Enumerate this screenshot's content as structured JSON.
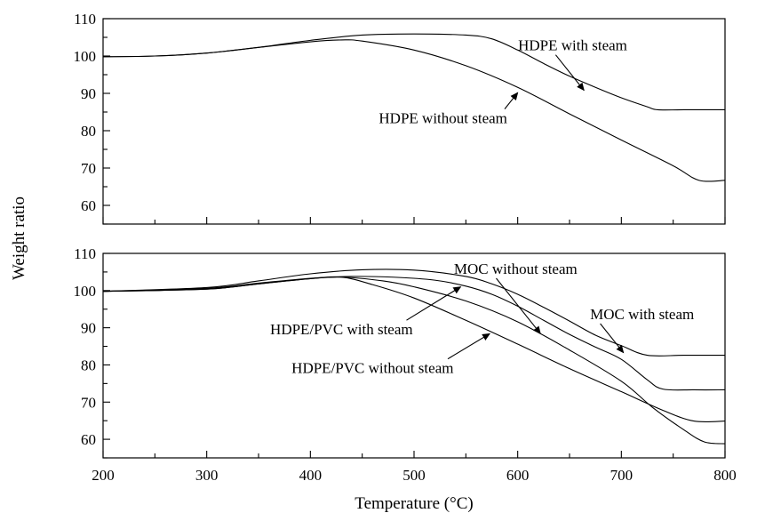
{
  "chart_data": [
    {
      "type": "line",
      "panel": "top",
      "xlabel": "Temperature (°C)",
      "ylabel": "Weight ratio",
      "xlim": [
        200,
        800
      ],
      "ylim": [
        55,
        110
      ],
      "xticks": [
        200,
        300,
        400,
        500,
        600,
        700,
        800
      ],
      "yticks": [
        60,
        70,
        80,
        90,
        100,
        110
      ],
      "grid": false,
      "series": [
        {
          "name": "HDPE with steam",
          "x": [
            200,
            250,
            300,
            350,
            400,
            450,
            500,
            550,
            575,
            600,
            625,
            650,
            675,
            700,
            725,
            735,
            760,
            800
          ],
          "y": [
            99.8,
            100.0,
            100.8,
            102.3,
            104.2,
            105.6,
            105.9,
            105.6,
            104.6,
            101.6,
            98.0,
            94.6,
            91.6,
            88.8,
            86.4,
            85.6,
            85.6,
            85.6
          ]
        },
        {
          "name": "HDPE without steam",
          "x": [
            200,
            250,
            300,
            350,
            400,
            430,
            450,
            500,
            550,
            600,
            650,
            700,
            750,
            775,
            800
          ],
          "y": [
            99.8,
            100.0,
            100.8,
            102.3,
            103.8,
            104.3,
            104.0,
            101.6,
            97.4,
            91.6,
            84.5,
            77.5,
            70.6,
            66.7,
            66.7
          ]
        }
      ],
      "annotations": [
        {
          "text": "HDPE with steam",
          "x": 653,
          "y": 101.5,
          "arrow_to": [
            664,
            90.8
          ]
        },
        {
          "text": "HDPE without steam",
          "x": 528,
          "y": 82,
          "arrow_to": [
            600,
            90.2
          ]
        }
      ]
    },
    {
      "type": "line",
      "panel": "bottom",
      "xlabel": "Temperature (°C)",
      "ylabel": "Weight ratio",
      "xlim": [
        200,
        800
      ],
      "ylim": [
        55,
        110
      ],
      "xticks": [
        200,
        300,
        400,
        500,
        600,
        700,
        800
      ],
      "yticks": [
        60,
        70,
        80,
        90,
        100,
        110
      ],
      "grid": false,
      "series": [
        {
          "name": "MOC with steam",
          "x": [
            200,
            300,
            350,
            400,
            450,
            500,
            550,
            575,
            600,
            625,
            650,
            675,
            700,
            725,
            760,
            800
          ],
          "y": [
            99.8,
            100.8,
            102.6,
            104.5,
            105.6,
            105.5,
            103.8,
            101.8,
            99.0,
            95.5,
            91.8,
            88.0,
            85.2,
            82.6,
            82.6,
            82.6
          ]
        },
        {
          "name": "MOC without steam",
          "x": [
            200,
            300,
            350,
            400,
            440,
            480,
            520,
            550,
            575,
            600,
            625,
            650,
            675,
            700,
            725,
            740,
            770,
            800
          ],
          "y": [
            99.8,
            100.6,
            102.0,
            103.3,
            103.8,
            103.6,
            102.8,
            101.2,
            99.0,
            95.8,
            92.0,
            88.2,
            84.8,
            81.5,
            76.0,
            73.5,
            73.3,
            73.3
          ]
        },
        {
          "name": "HDPE/PVC with steam",
          "x": [
            200,
            300,
            350,
            400,
            430,
            470,
            500,
            550,
            600,
            650,
            700,
            730,
            760,
            780,
            800
          ],
          "y": [
            99.8,
            100.4,
            101.8,
            103.2,
            103.6,
            102.6,
            101.0,
            97.2,
            91.6,
            84.0,
            75.6,
            68.6,
            62.6,
            59.3,
            58.8
          ]
        },
        {
          "name": "HDPE/PVC without steam",
          "x": [
            200,
            300,
            350,
            400,
            430,
            460,
            500,
            550,
            600,
            650,
            700,
            740,
            770,
            800
          ],
          "y": [
            99.8,
            100.4,
            101.8,
            103.2,
            103.6,
            101.6,
            98.0,
            92.0,
            85.6,
            79.0,
            72.8,
            67.8,
            64.9,
            64.9
          ]
        }
      ],
      "annotations": [
        {
          "text": "MOC without steam",
          "x": 598,
          "y": 104.5,
          "arrow_to": [
            622,
            88.4
          ]
        },
        {
          "text": "MOC with steam",
          "x": 720,
          "y": 92.3,
          "arrow_to": [
            702,
            83.3
          ]
        },
        {
          "text": "HDPE/PVC with steam",
          "x": 430,
          "y": 88.2,
          "arrow_to": [
            545,
            101.0
          ]
        },
        {
          "text": "HDPE/PVC without steam",
          "x": 460,
          "y": 77.8,
          "arrow_to": [
            573,
            88.4
          ]
        }
      ]
    }
  ]
}
